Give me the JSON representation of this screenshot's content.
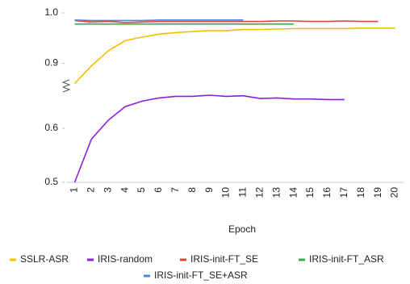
{
  "chart_data": {
    "type": "line",
    "x_label": "Epoch",
    "categories": [
      "1",
      "2",
      "3",
      "4",
      "5",
      "6",
      "7",
      "8",
      "9",
      "10",
      "11",
      "12",
      "13",
      "14",
      "15",
      "16",
      "17",
      "18",
      "19",
      "20"
    ],
    "series": [
      {
        "name": "SSLR-ASR",
        "color": "#f5bd00",
        "values": [
          0.86,
          0.895,
          0.925,
          0.945,
          0.952,
          0.958,
          0.961,
          0.963,
          0.965,
          0.965,
          0.967,
          0.967,
          0.968,
          0.969,
          0.969,
          0.969,
          0.969,
          0.97,
          0.97,
          0.97
        ]
      },
      {
        "name": "IRIS-random",
        "color": "#8a1fd6",
        "values": [
          0.5,
          0.58,
          0.615,
          0.64,
          0.65,
          0.656,
          0.659,
          0.659,
          0.661,
          0.659,
          0.66,
          0.655,
          0.656,
          0.654,
          0.654,
          0.653,
          0.653,
          null,
          null,
          null
        ]
      },
      {
        "name": "IRIS-init-FT_SE",
        "color": "#e0453a",
        "values": [
          0.985,
          0.982,
          0.983,
          0.981,
          0.982,
          0.983,
          0.983,
          0.983,
          0.983,
          0.983,
          0.983,
          0.983,
          0.984,
          0.984,
          0.983,
          0.983,
          0.984,
          0.983,
          0.983,
          null
        ]
      },
      {
        "name": "IRIS-init-FT_ASR",
        "color": "#3cab4a",
        "values": [
          0.978,
          0.978,
          0.978,
          0.978,
          0.978,
          0.978,
          0.978,
          0.978,
          0.978,
          0.978,
          0.978,
          0.978,
          0.978,
          0.978,
          null,
          null,
          null,
          null,
          null,
          null
        ]
      },
      {
        "name": "IRIS-init-FT_SE+ASR",
        "color": "#4a86e8",
        "values": [
          0.986,
          0.985,
          0.985,
          0.985,
          0.985,
          0.986,
          0.986,
          0.986,
          0.986,
          0.986,
          0.986,
          null,
          null,
          null,
          null,
          null,
          null,
          null,
          null,
          null
        ]
      }
    ],
    "ylim": [
      0.5,
      1
    ],
    "ybreak": [
      0.67,
      0.84
    ],
    "yticks": [
      0.5,
      0.6,
      0.9,
      {
        "value": 1,
        "label": "1.0"
      }
    ],
    "legend": "bottom"
  }
}
